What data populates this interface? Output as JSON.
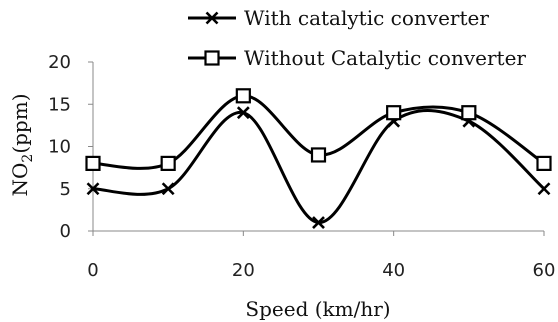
{
  "chart_data": {
    "type": "line",
    "x": [
      0,
      10,
      20,
      30,
      40,
      50,
      60
    ],
    "series": [
      {
        "name": "With catalytic converter",
        "marker": "x",
        "values": [
          5,
          5,
          14,
          1,
          13,
          13,
          5
        ]
      },
      {
        "name": "Without Catalytic converter",
        "marker": "square",
        "values": [
          8,
          8,
          16,
          9,
          14,
          14,
          8
        ]
      }
    ],
    "xlabel": "Speed (km/hr)",
    "ylabel_main": "NO",
    "ylabel_sub": "2",
    "ylabel_unit": "(ppm)",
    "xlim": [
      0,
      60
    ],
    "ylim": [
      0,
      20
    ],
    "x_ticks": [
      "0",
      "20",
      "40",
      "60"
    ],
    "y_ticks": [
      "0",
      "5",
      "10",
      "15",
      "20"
    ],
    "smooth": true,
    "grid": false,
    "legend_position": "top-right",
    "line_color": "#000000"
  }
}
